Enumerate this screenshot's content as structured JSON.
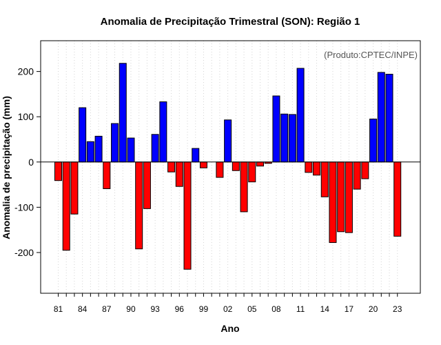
{
  "chart_data": {
    "type": "bar",
    "title": "Anomalia de Precipitação Trimestral (SON): Região 1",
    "xlabel": "Ano",
    "ylabel": "Anomalia de precipitação (mm)",
    "annotation": "(Produto:CPTEC/INPE)",
    "ylim": [
      -290,
      268
    ],
    "y_ticks": [
      -200,
      -100,
      0,
      100,
      200
    ],
    "x_tick_labels": [
      "81",
      "84",
      "87",
      "90",
      "93",
      "96",
      "99",
      "02",
      "05",
      "08",
      "11",
      "14",
      "17",
      "20",
      "23"
    ],
    "x_tick_every": 3,
    "grid": "vertical dotted",
    "colors": {
      "positive": "#0000ff",
      "negative": "#ff0000",
      "grid": "#d3d3d3"
    },
    "years": [
      1981,
      1982,
      1983,
      1984,
      1985,
      1986,
      1987,
      1988,
      1989,
      1990,
      1991,
      1992,
      1993,
      1994,
      1995,
      1996,
      1997,
      1998,
      1999,
      2000,
      2001,
      2002,
      2003,
      2004,
      2005,
      2006,
      2007,
      2008,
      2009,
      2010,
      2011,
      2012,
      2013,
      2014,
      2015,
      2016,
      2017,
      2018,
      2019,
      2020,
      2021,
      2022,
      2023
    ],
    "values": [
      -41,
      -195,
      -115,
      120,
      45,
      57,
      -59,
      85,
      218,
      53,
      -192,
      -103,
      61,
      133,
      -22,
      -54,
      -237,
      30,
      -13,
      0,
      -34,
      93,
      -19,
      -110,
      -44,
      -9,
      -3,
      146,
      106,
      105,
      207,
      -23,
      -29,
      -77,
      -178,
      -154,
      -156,
      -60,
      -37,
      95,
      198,
      194,
      -164
    ]
  }
}
